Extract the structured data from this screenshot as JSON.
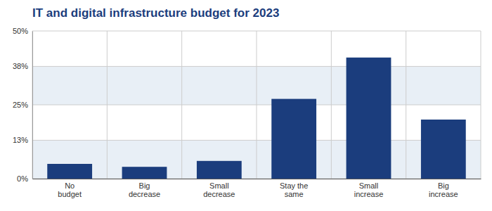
{
  "chart_data": {
    "type": "bar",
    "title": "IT and digital infrastructure budget for 2023",
    "categories": [
      "No\nbudget",
      "Big\ndecrease",
      "Small\ndecrease",
      "Stay the\nsame",
      "Small\nincrease",
      "Big\nincrease"
    ],
    "values": [
      5,
      4,
      6,
      27,
      41,
      20
    ],
    "color": "#1b3d7d",
    "ylim": [
      0,
      50
    ],
    "yticks": [
      {
        "value": 0,
        "label": "0%"
      },
      {
        "value": 13,
        "label": "13%"
      },
      {
        "value": 25,
        "label": "25%"
      },
      {
        "value": 38,
        "label": "38%"
      },
      {
        "value": 50,
        "label": "50%"
      }
    ],
    "grid": true
  }
}
